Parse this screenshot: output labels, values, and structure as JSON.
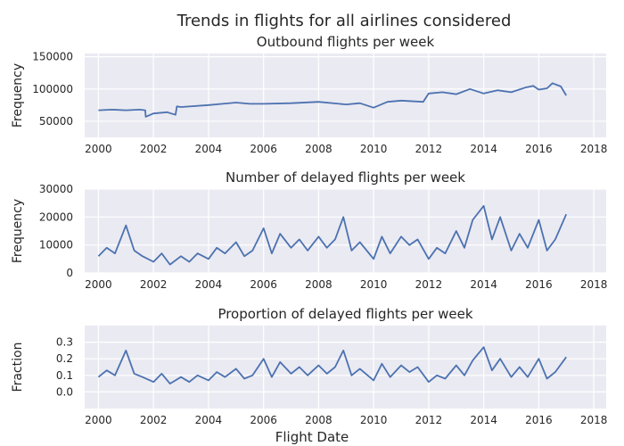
{
  "figure": {
    "suptitle": "Trends in flights for all airlines considered",
    "xlabel": "Flight Date"
  },
  "chart_data": [
    {
      "type": "line",
      "title": "Outbound flights per week",
      "xlabel": "",
      "ylabel": "Frequency",
      "xlim": [
        1999.5,
        2018.45
      ],
      "ylim": [
        25000,
        155000
      ],
      "xticks": [
        "2000",
        "2002",
        "2004",
        "2006",
        "2008",
        "2010",
        "2012",
        "2014",
        "2016",
        "2018"
      ],
      "yticks": [
        "50000",
        "100000",
        "150000"
      ],
      "grid": true,
      "color": "#4c72b0",
      "x": [
        2000.0,
        2000.5,
        2001.0,
        2001.5,
        2001.7,
        2001.72,
        2002.0,
        2002.5,
        2002.8,
        2002.85,
        2003.0,
        2004.0,
        2005.0,
        2005.5,
        2006.0,
        2007.0,
        2008.0,
        2009.0,
        2009.5,
        2010.0,
        2010.5,
        2011.0,
        2011.8,
        2012.0,
        2012.5,
        2013.0,
        2013.5,
        2014.0,
        2014.5,
        2015.0,
        2015.5,
        2015.8,
        2016.0,
        2016.3,
        2016.5,
        2016.8,
        2017.0
      ],
      "y": [
        67000,
        68000,
        67000,
        68000,
        67000,
        57000,
        62000,
        64000,
        60000,
        73000,
        72000,
        75000,
        79000,
        77000,
        77000,
        78000,
        80000,
        76000,
        78000,
        71000,
        80000,
        82000,
        80000,
        93000,
        95000,
        92000,
        100000,
        93000,
        98000,
        95000,
        102000,
        105000,
        99000,
        101000,
        109000,
        104000,
        90000
      ]
    },
    {
      "type": "line",
      "title": "Number of delayed flights per week",
      "xlabel": "",
      "ylabel": "Frequency",
      "xlim": [
        1999.5,
        2018.45
      ],
      "ylim": [
        0,
        30000
      ],
      "xticks": [
        "2000",
        "2002",
        "2004",
        "2006",
        "2008",
        "2010",
        "2012",
        "2014",
        "2016",
        "2018"
      ],
      "yticks": [
        "0",
        "10000",
        "20000",
        "30000"
      ],
      "grid": true,
      "color": "#4c72b0",
      "x": [
        2000.0,
        2000.3,
        2000.6,
        2001.0,
        2001.3,
        2001.6,
        2002.0,
        2002.3,
        2002.6,
        2003.0,
        2003.3,
        2003.6,
        2004.0,
        2004.3,
        2004.6,
        2005.0,
        2005.3,
        2005.6,
        2006.0,
        2006.3,
        2006.6,
        2007.0,
        2007.3,
        2007.6,
        2008.0,
        2008.3,
        2008.6,
        2008.9,
        2009.2,
        2009.5,
        2010.0,
        2010.3,
        2010.6,
        2011.0,
        2011.3,
        2011.6,
        2012.0,
        2012.3,
        2012.6,
        2013.0,
        2013.3,
        2013.6,
        2014.0,
        2014.3,
        2014.6,
        2015.0,
        2015.3,
        2015.6,
        2016.0,
        2016.3,
        2016.6,
        2017.0
      ],
      "y": [
        6000,
        9000,
        7000,
        17000,
        8000,
        6000,
        4000,
        7000,
        3000,
        6000,
        4000,
        7000,
        5000,
        9000,
        7000,
        11000,
        6000,
        8000,
        16000,
        7000,
        14000,
        9000,
        12000,
        8000,
        13000,
        9000,
        12000,
        20000,
        8000,
        11000,
        5000,
        13000,
        7000,
        13000,
        10000,
        12000,
        5000,
        9000,
        7000,
        15000,
        9000,
        19000,
        24000,
        12000,
        20000,
        8000,
        14000,
        9000,
        19000,
        8000,
        12000,
        21000
      ]
    },
    {
      "type": "line",
      "title": "Proportion of delayed flights per week",
      "xlabel": "Flight Date",
      "ylabel": "Fraction",
      "xlim": [
        1999.5,
        2018.45
      ],
      "ylim": [
        -0.1,
        0.4
      ],
      "xticks": [
        "2000",
        "2002",
        "2004",
        "2006",
        "2008",
        "2010",
        "2012",
        "2014",
        "2016",
        "2018"
      ],
      "yticks": [
        "0.0",
        "0.1",
        "0.2",
        "0.3"
      ],
      "grid": true,
      "color": "#4c72b0",
      "x": [
        2000.0,
        2000.3,
        2000.6,
        2001.0,
        2001.3,
        2001.6,
        2002.0,
        2002.3,
        2002.6,
        2003.0,
        2003.3,
        2003.6,
        2004.0,
        2004.3,
        2004.6,
        2005.0,
        2005.3,
        2005.6,
        2006.0,
        2006.3,
        2006.6,
        2007.0,
        2007.3,
        2007.6,
        2008.0,
        2008.3,
        2008.6,
        2008.9,
        2009.2,
        2009.5,
        2010.0,
        2010.3,
        2010.6,
        2011.0,
        2011.3,
        2011.6,
        2012.0,
        2012.3,
        2012.6,
        2013.0,
        2013.3,
        2013.6,
        2014.0,
        2014.3,
        2014.6,
        2015.0,
        2015.3,
        2015.6,
        2016.0,
        2016.3,
        2016.6,
        2017.0
      ],
      "y": [
        0.09,
        0.13,
        0.1,
        0.25,
        0.11,
        0.09,
        0.06,
        0.11,
        0.05,
        0.09,
        0.06,
        0.1,
        0.07,
        0.12,
        0.09,
        0.14,
        0.08,
        0.1,
        0.2,
        0.09,
        0.18,
        0.11,
        0.15,
        0.1,
        0.16,
        0.11,
        0.15,
        0.25,
        0.1,
        0.14,
        0.07,
        0.17,
        0.09,
        0.16,
        0.12,
        0.15,
        0.06,
        0.1,
        0.08,
        0.16,
        0.1,
        0.19,
        0.27,
        0.13,
        0.2,
        0.09,
        0.15,
        0.09,
        0.2,
        0.08,
        0.12,
        0.21
      ]
    }
  ]
}
